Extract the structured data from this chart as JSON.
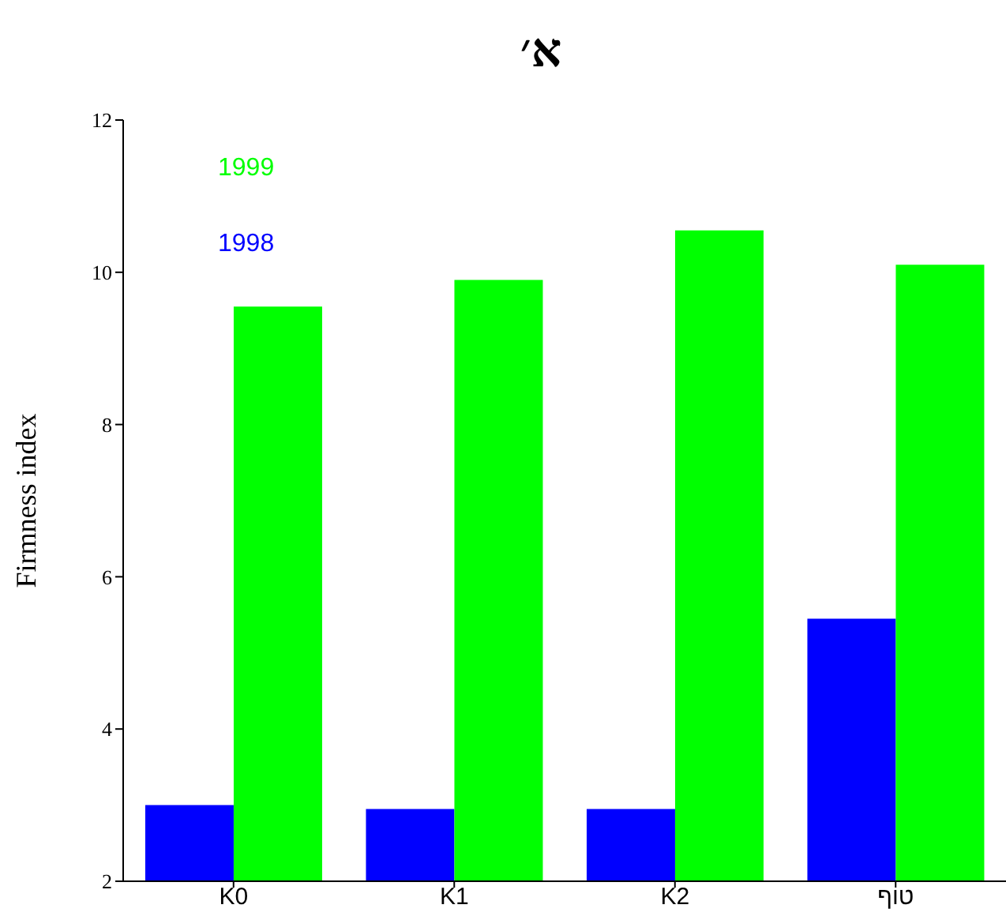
{
  "chart_data": {
    "type": "bar",
    "title": "א׳",
    "ylabel": "Firmness index",
    "categories": [
      "K0",
      "K1",
      "K2",
      "טוף"
    ],
    "series": [
      {
        "name": "1998",
        "color": "#0000ff",
        "values": [
          3.0,
          2.95,
          2.95,
          5.45
        ]
      },
      {
        "name": "1999",
        "color": "#00ff00",
        "values": [
          9.55,
          9.9,
          10.55,
          10.1
        ]
      }
    ],
    "ylim": [
      2,
      12
    ],
    "yticks": [
      2,
      4,
      6,
      8,
      10,
      12
    ],
    "grid": false,
    "legend": "top left"
  }
}
